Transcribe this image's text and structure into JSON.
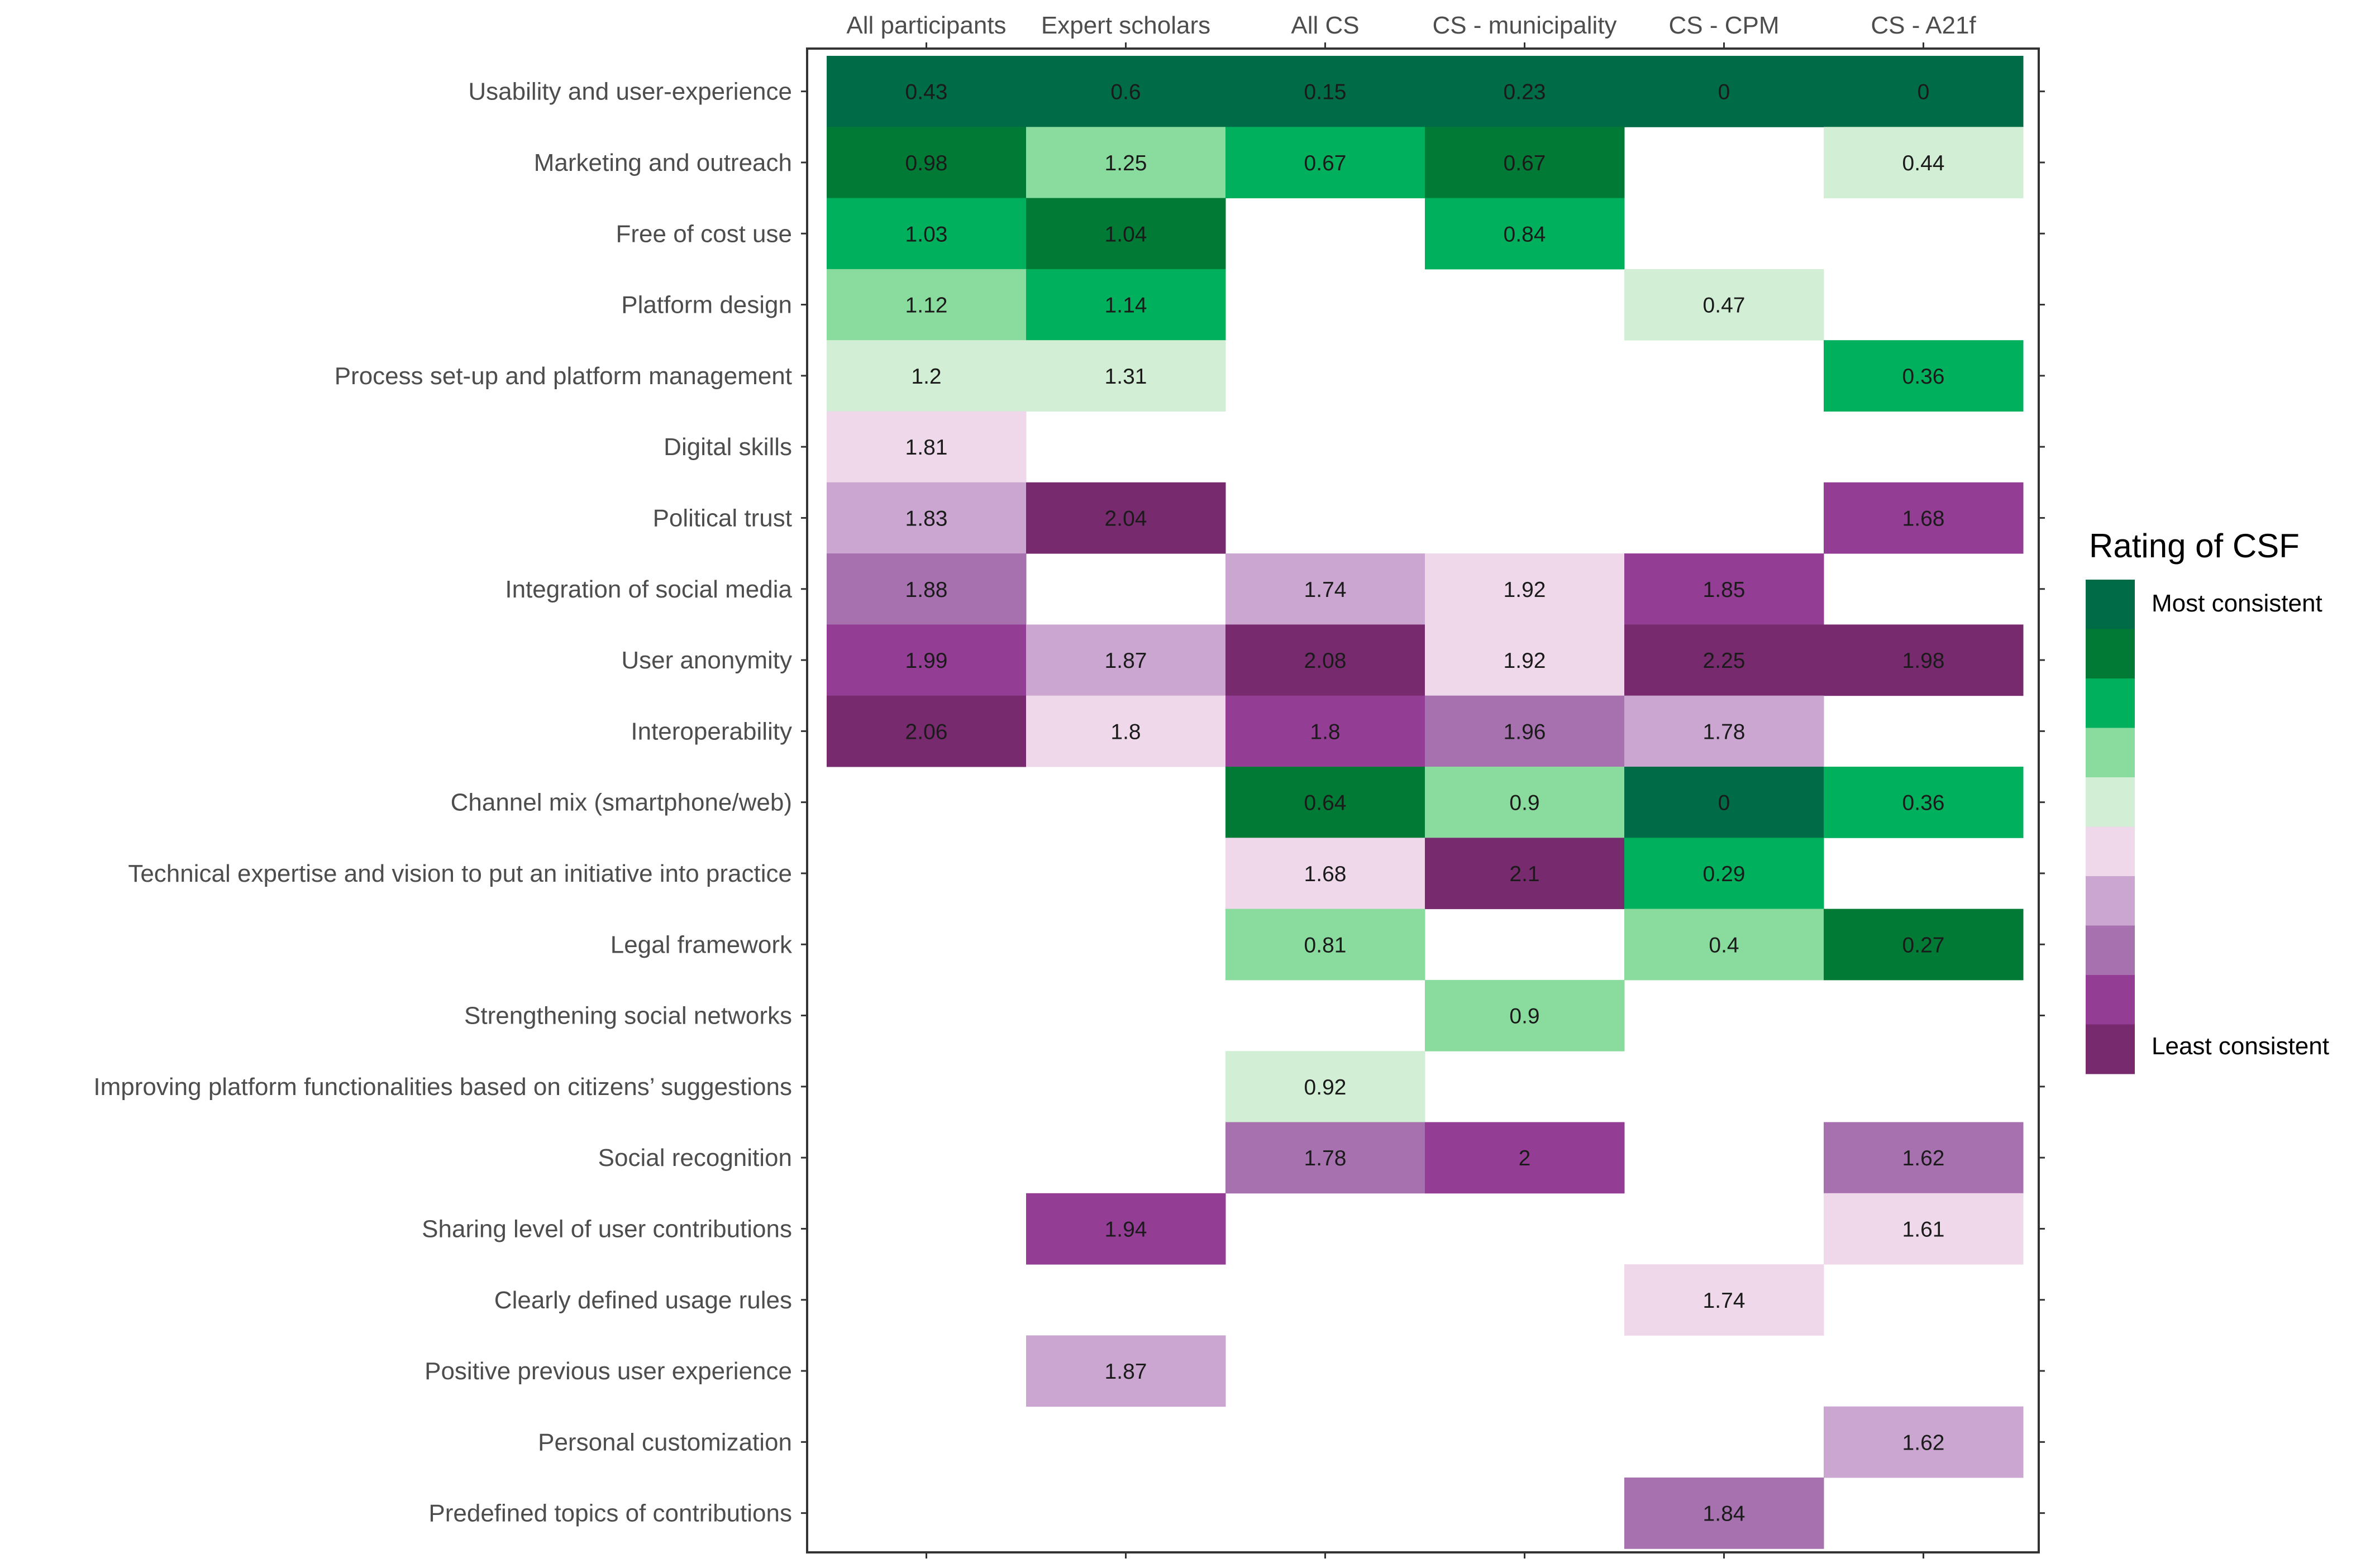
{
  "chart_data": {
    "type": "heatmap",
    "title": "",
    "xlabel": "",
    "ylabel": "",
    "columns": [
      "All participants",
      "Expert scholars",
      "All CS",
      "CS - municipality",
      "CS - CPM",
      "CS - A21f"
    ],
    "rows": [
      "Usability and user-experience",
      "Marketing and outreach",
      "Free of cost use",
      "Platform design",
      "Process set-up and platform management",
      "Digital skills",
      "Political trust",
      "Integration of social media",
      "User anonymity",
      "Interoperability",
      "Channel mix (smartphone/web)",
      "Technical expertise and vision to put an initiative into practice",
      "Legal framework",
      "Strengthening social networks",
      "Improving platform functionalities based on citizens’ suggestions",
      "Social recognition",
      "Sharing level of user contributions",
      "Clearly defined usage rules",
      "Positive previous user experience",
      "Personal customization",
      "Predefined topics of contributions"
    ],
    "cells": [
      {
        "row": 0,
        "col": 0,
        "label": "0.43",
        "level": 1
      },
      {
        "row": 0,
        "col": 1,
        "label": "0.6",
        "level": 1
      },
      {
        "row": 0,
        "col": 2,
        "label": "0.15",
        "level": 1
      },
      {
        "row": 0,
        "col": 3,
        "label": "0.23",
        "level": 1
      },
      {
        "row": 0,
        "col": 4,
        "label": "0",
        "level": 1
      },
      {
        "row": 0,
        "col": 5,
        "label": "0",
        "level": 1
      },
      {
        "row": 1,
        "col": 0,
        "label": "0.98",
        "level": 2
      },
      {
        "row": 1,
        "col": 1,
        "label": "1.25",
        "level": 4
      },
      {
        "row": 1,
        "col": 2,
        "label": "0.67",
        "level": 3
      },
      {
        "row": 1,
        "col": 3,
        "label": "0.67",
        "level": 2
      },
      {
        "row": 1,
        "col": 5,
        "label": "0.44",
        "level": 5
      },
      {
        "row": 2,
        "col": 0,
        "label": "1.03",
        "level": 3
      },
      {
        "row": 2,
        "col": 1,
        "label": "1.04",
        "level": 2
      },
      {
        "row": 2,
        "col": 3,
        "label": "0.84",
        "level": 3
      },
      {
        "row": 3,
        "col": 0,
        "label": "1.12",
        "level": 4
      },
      {
        "row": 3,
        "col": 1,
        "label": "1.14",
        "level": 3
      },
      {
        "row": 3,
        "col": 4,
        "label": "0.47",
        "level": 5
      },
      {
        "row": 4,
        "col": 0,
        "label": "1.2",
        "level": 5
      },
      {
        "row": 4,
        "col": 1,
        "label": "1.31",
        "level": 5
      },
      {
        "row": 4,
        "col": 5,
        "label": "0.36",
        "level": 3
      },
      {
        "row": 5,
        "col": 0,
        "label": "1.81",
        "level": 6
      },
      {
        "row": 6,
        "col": 0,
        "label": "1.83",
        "level": 7
      },
      {
        "row": 6,
        "col": 1,
        "label": "2.04",
        "level": 10
      },
      {
        "row": 6,
        "col": 5,
        "label": "1.68",
        "level": 9
      },
      {
        "row": 7,
        "col": 0,
        "label": "1.88",
        "level": 8
      },
      {
        "row": 7,
        "col": 2,
        "label": "1.74",
        "level": 7
      },
      {
        "row": 7,
        "col": 3,
        "label": "1.92",
        "level": 6
      },
      {
        "row": 7,
        "col": 4,
        "label": "1.85",
        "level": 9
      },
      {
        "row": 8,
        "col": 0,
        "label": "1.99",
        "level": 9
      },
      {
        "row": 8,
        "col": 1,
        "label": "1.87",
        "level": 7
      },
      {
        "row": 8,
        "col": 2,
        "label": "2.08",
        "level": 10
      },
      {
        "row": 8,
        "col": 3,
        "label": "1.92",
        "level": 6
      },
      {
        "row": 8,
        "col": 4,
        "label": "2.25",
        "level": 10
      },
      {
        "row": 8,
        "col": 5,
        "label": "1.98",
        "level": 10
      },
      {
        "row": 9,
        "col": 0,
        "label": "2.06",
        "level": 10
      },
      {
        "row": 9,
        "col": 1,
        "label": "1.8",
        "level": 6
      },
      {
        "row": 9,
        "col": 2,
        "label": "1.8",
        "level": 9
      },
      {
        "row": 9,
        "col": 3,
        "label": "1.96",
        "level": 8
      },
      {
        "row": 9,
        "col": 4,
        "label": "1.78",
        "level": 7
      },
      {
        "row": 10,
        "col": 2,
        "label": "0.64",
        "level": 2
      },
      {
        "row": 10,
        "col": 3,
        "label": "0.9",
        "level": 4
      },
      {
        "row": 10,
        "col": 4,
        "label": "0",
        "level": 1
      },
      {
        "row": 10,
        "col": 5,
        "label": "0.36",
        "level": 3
      },
      {
        "row": 11,
        "col": 2,
        "label": "1.68",
        "level": 6
      },
      {
        "row": 11,
        "col": 3,
        "label": "2.1",
        "level": 10
      },
      {
        "row": 11,
        "col": 4,
        "label": "0.29",
        "level": 3
      },
      {
        "row": 12,
        "col": 2,
        "label": "0.81",
        "level": 4
      },
      {
        "row": 12,
        "col": 4,
        "label": "0.4",
        "level": 4
      },
      {
        "row": 12,
        "col": 5,
        "label": "0.27",
        "level": 2
      },
      {
        "row": 13,
        "col": 3,
        "label": "0.9",
        "level": 4
      },
      {
        "row": 14,
        "col": 2,
        "label": "0.92",
        "level": 5
      },
      {
        "row": 15,
        "col": 2,
        "label": "1.78",
        "level": 8
      },
      {
        "row": 15,
        "col": 3,
        "label": "2",
        "level": 9
      },
      {
        "row": 15,
        "col": 5,
        "label": "1.62",
        "level": 8
      },
      {
        "row": 16,
        "col": 1,
        "label": "1.94",
        "level": 9
      },
      {
        "row": 16,
        "col": 5,
        "label": "1.61",
        "level": 6
      },
      {
        "row": 17,
        "col": 4,
        "label": "1.74",
        "level": 6
      },
      {
        "row": 18,
        "col": 1,
        "label": "1.87",
        "level": 7
      },
      {
        "row": 19,
        "col": 5,
        "label": "1.62",
        "level": 7
      },
      {
        "row": 20,
        "col": 4,
        "label": "1.84",
        "level": 8
      }
    ],
    "legend": {
      "title": "Rating of CSF",
      "top_label": "Most consistent",
      "bottom_label": "Least consistent",
      "placement": "right",
      "colors": [
        "#006b47",
        "#007a35",
        "#00b05c",
        "#8adb9e",
        "#d2efd6",
        "#eed8ea",
        "#cba6d1",
        "#a771b0",
        "#943d94",
        "#772b6e"
      ]
    },
    "grid": false
  }
}
